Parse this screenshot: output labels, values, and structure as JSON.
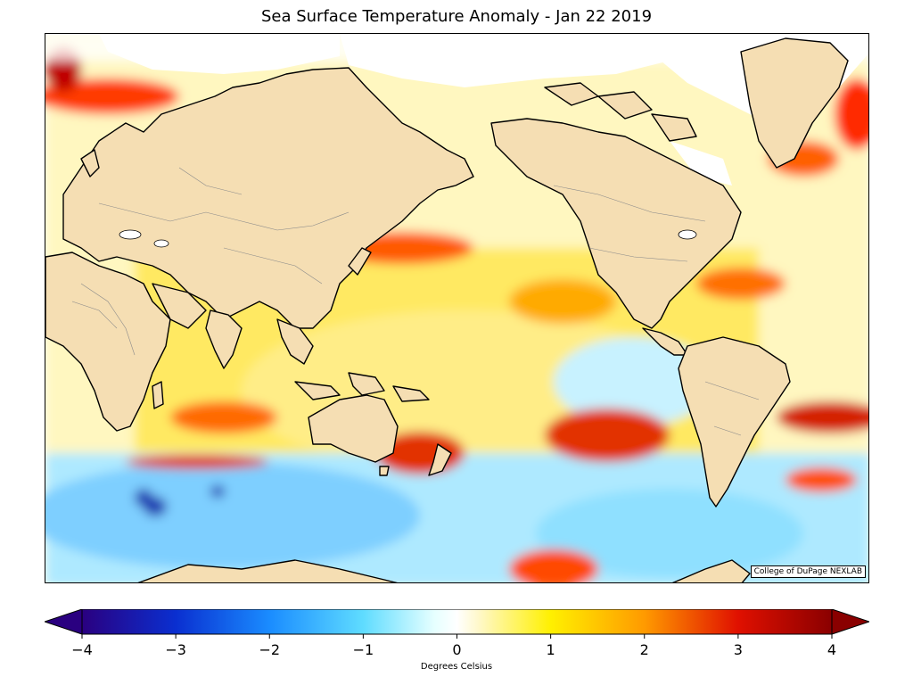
{
  "title": "Sea Surface Temperature Anomaly - Jan 22 2019",
  "credit": "College of DuPage NEXLAB",
  "colorbar": {
    "units": "Degrees Celsius",
    "range": [
      -4,
      4
    ],
    "ticks": [
      "−4",
      "−3",
      "−2",
      "−1",
      "0",
      "1",
      "2",
      "3",
      "4"
    ],
    "extend": "both",
    "colors": [
      "#2a0080",
      "#0a4fe0",
      "#1aa0ff",
      "#7ff0ff",
      "#ffffff",
      "#fff000",
      "#ff9a00",
      "#e01000",
      "#8a0000"
    ]
  },
  "map": {
    "projection": "equirectangular",
    "land_color": "#f5deb3",
    "coastline_color": "#000000",
    "border_color": "#8a8a8a",
    "ice_color": "#ffffff"
  }
}
